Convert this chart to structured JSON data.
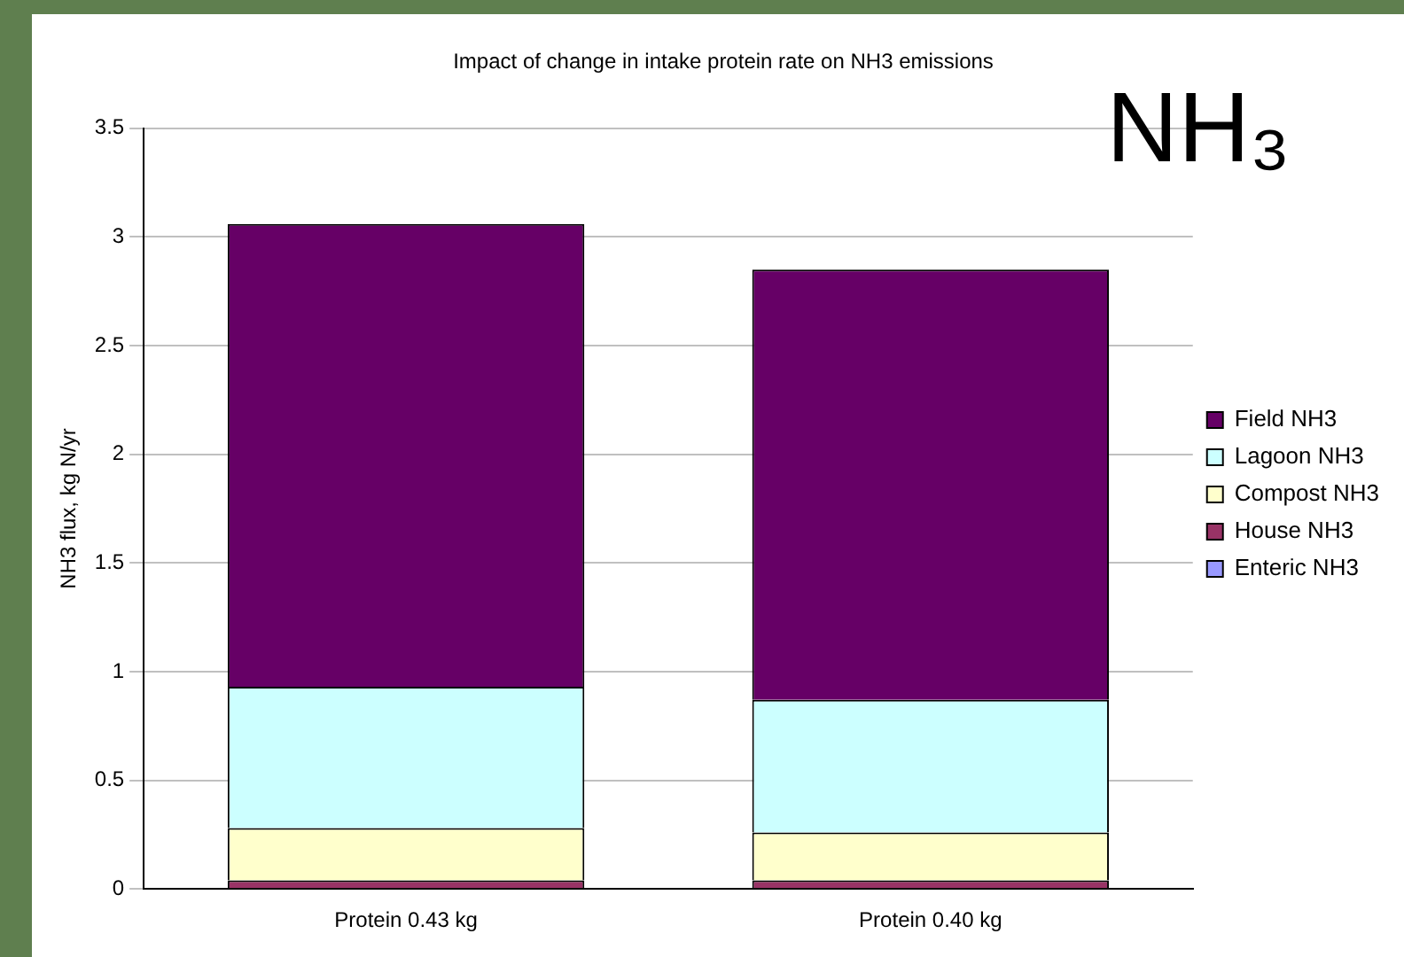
{
  "chart_data": {
    "type": "bar",
    "title": "Impact of change in intake protein rate on NH3 emissions",
    "ylabel": "NH3 flux, kg N/yr",
    "categories": [
      "Protein 0.43 kg",
      "Protein 0.40 kg"
    ],
    "stacked": true,
    "series": [
      {
        "name": "Enteric NH3",
        "color": "#9999ff",
        "values": [
          null,
          null
        ]
      },
      {
        "name": "House NH3",
        "color": "#993366",
        "values": [
          0.04,
          0.04
        ]
      },
      {
        "name": "Compost NH3",
        "color": "#ffffcc",
        "values": [
          0.24,
          0.22
        ]
      },
      {
        "name": "Lagoon NH3",
        "color": "#ccffff",
        "values": [
          0.65,
          0.61
        ]
      },
      {
        "name": "Field NH3",
        "color": "#660066",
        "values": [
          2.13,
          1.98
        ]
      }
    ],
    "ylim": [
      0,
      3.5
    ],
    "yticks": [
      0,
      0.5,
      1,
      1.5,
      2,
      2.5,
      3,
      3.5
    ],
    "grid": "y",
    "legend": "right",
    "annotations": [
      "NH₃"
    ]
  }
}
